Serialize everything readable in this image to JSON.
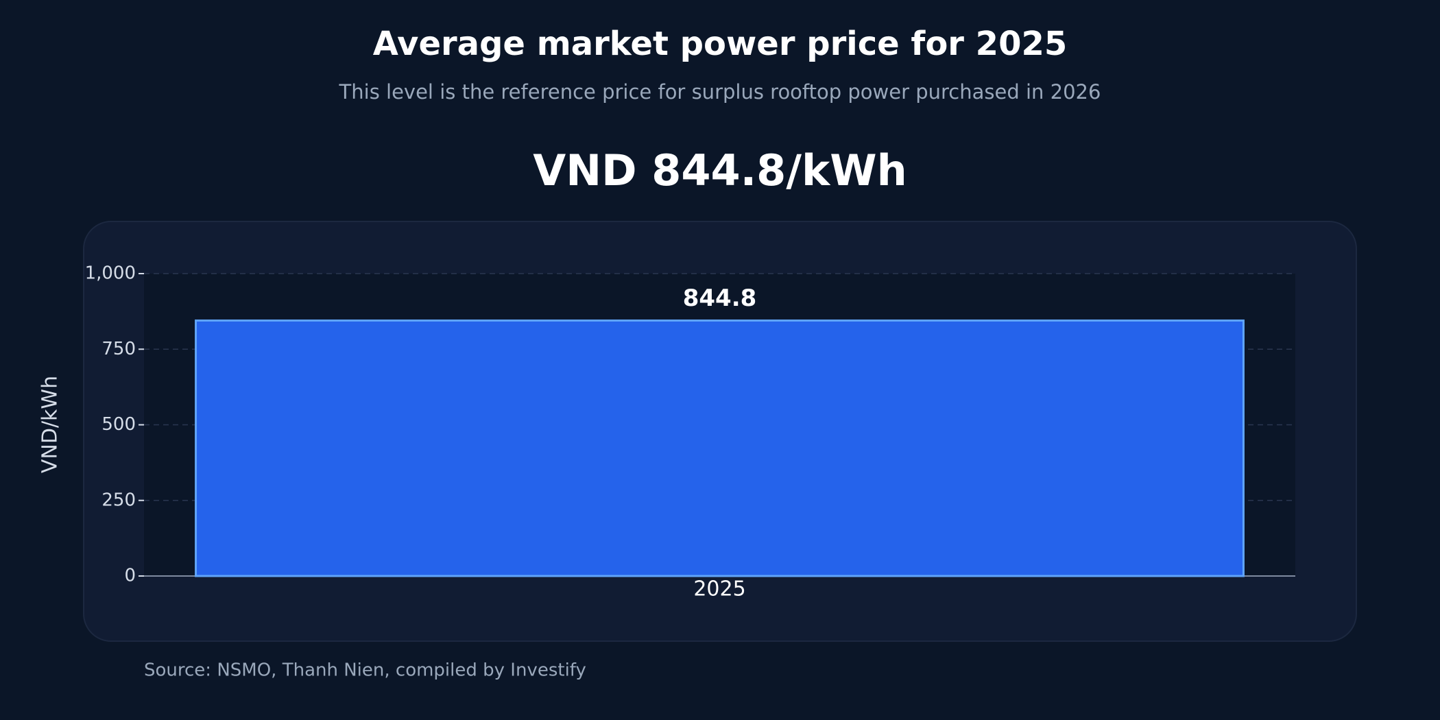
{
  "chart_data": {
    "type": "bar",
    "title": "Average market power price for 2025",
    "subtitle": "This level is the reference price for surplus rooftop power purchased in 2026",
    "annotation": "VND 844.8/kWh",
    "ylabel": "VND/kWh",
    "categories": [
      "2025"
    ],
    "values": [
      844.8
    ],
    "color": "#2563eb",
    "ylim": [
      0,
      1000
    ],
    "yticks": [
      0,
      250,
      500,
      750,
      {
        "value": 1000,
        "label": "1,000"
      }
    ],
    "grid": true,
    "source": "Source: NSMO, Thanh Nien, compiled by Investify"
  }
}
